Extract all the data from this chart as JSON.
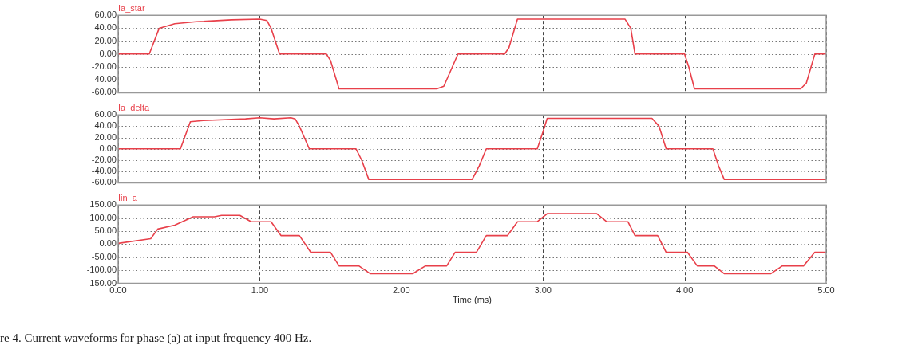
{
  "chart_data": [
    {
      "type": "line",
      "title": "Ia_star",
      "color": "#e8404a",
      "tick_labels": "y",
      "grid": true,
      "x": [
        0,
        0.22,
        0.29,
        0.4,
        0.55,
        0.8,
        1.0,
        1.05,
        1.08,
        1.14,
        1.47,
        1.5,
        1.56,
        2.25,
        2.3,
        2.36,
        2.4,
        2.73,
        2.76,
        2.82,
        3.58,
        3.62,
        3.65,
        4.0,
        4.03,
        4.07,
        4.82,
        4.86,
        4.92,
        5.0
      ],
      "values": [
        0,
        0,
        40,
        47,
        50,
        53,
        54,
        52,
        40,
        0,
        0,
        -10,
        -54,
        -54,
        -50,
        -20,
        0,
        0,
        10,
        54,
        54,
        40,
        0,
        0,
        -20,
        -54,
        -54,
        -45,
        0,
        0
      ],
      "xlim": [
        0,
        5
      ],
      "xticks": [
        0,
        1,
        2,
        3,
        4,
        5
      ],
      "ylim": [
        -60,
        60
      ],
      "yticks": [
        {
          "value": -60,
          "label": "-60.00"
        },
        {
          "value": -40,
          "label": "-40.00"
        },
        {
          "value": -20,
          "label": "-20.00"
        },
        {
          "value": 0,
          "label": "0.00"
        },
        {
          "value": 20,
          "label": "20.00"
        },
        {
          "value": 40,
          "label": "40.00"
        },
        {
          "value": 60,
          "label": "60.00"
        }
      ]
    },
    {
      "type": "line",
      "title": "Ia_delta",
      "color": "#e8404a",
      "tick_labels": "y",
      "grid": true,
      "x": [
        0,
        0.44,
        0.51,
        0.6,
        0.9,
        1.0,
        1.1,
        1.22,
        1.25,
        1.28,
        1.35,
        1.68,
        1.72,
        1.77,
        2.5,
        2.55,
        2.6,
        2.96,
        3.0,
        3.03,
        3.77,
        3.82,
        3.87,
        4.2,
        4.24,
        4.28,
        5.0
      ],
      "values": [
        0,
        0,
        48,
        50,
        53,
        55,
        53,
        55,
        53,
        40,
        0,
        0,
        -20,
        -54,
        -54,
        -30,
        0,
        0,
        30,
        54,
        54,
        40,
        0,
        0,
        -30,
        -54,
        -54
      ],
      "xlim": [
        0,
        5
      ],
      "xticks": [
        0,
        1,
        2,
        3,
        4,
        5
      ],
      "ylim": [
        -60,
        60
      ],
      "yticks": [
        {
          "value": -60,
          "label": "-60.00"
        },
        {
          "value": -40,
          "label": "-40.00"
        },
        {
          "value": -20,
          "label": "-20.00"
        },
        {
          "value": 0,
          "label": "0.00"
        },
        {
          "value": 20,
          "label": "20.00"
        },
        {
          "value": 40,
          "label": "40.00"
        },
        {
          "value": 60,
          "label": "60.00"
        }
      ]
    },
    {
      "type": "line",
      "title": "Iin_a",
      "xlabel": "Time (ms)",
      "color": "#e8404a",
      "grid": true,
      "annotations": [
        "re 4.  Current waveforms for phase (a) at input frequency 400 Hz."
      ],
      "x": [
        0,
        0.23,
        0.28,
        0.4,
        0.53,
        0.68,
        0.73,
        0.86,
        0.94,
        1.08,
        1.15,
        1.28,
        1.36,
        1.5,
        1.56,
        1.7,
        1.78,
        2.08,
        2.17,
        2.32,
        2.38,
        2.53,
        2.6,
        2.75,
        2.82,
        2.96,
        3.03,
        3.38,
        3.45,
        3.6,
        3.65,
        3.81,
        3.87,
        4.02,
        4.09,
        4.21,
        4.28,
        4.61,
        4.69,
        4.84,
        4.92,
        5.0
      ],
      "values": [
        3,
        21,
        58,
        73,
        105,
        105,
        110,
        110,
        86,
        86,
        33,
        33,
        -31,
        -31,
        -83,
        -83,
        -113,
        -113,
        -83,
        -83,
        -31,
        -31,
        33,
        33,
        86,
        86,
        117,
        117,
        86,
        86,
        33,
        33,
        -31,
        -31,
        -83,
        -83,
        -113,
        -113,
        -83,
        -83,
        -31,
        -31
      ],
      "xlim": [
        0,
        5
      ],
      "xticks": [
        {
          "value": 0,
          "label": "0.00"
        },
        {
          "value": 1,
          "label": "1.00"
        },
        {
          "value": 2,
          "label": "2.00"
        },
        {
          "value": 3,
          "label": "3.00"
        },
        {
          "value": 4,
          "label": "4.00"
        },
        {
          "value": 5,
          "label": "5.00"
        }
      ],
      "ylim": [
        -150,
        150
      ],
      "yticks": [
        {
          "value": -150,
          "label": "-150.00"
        },
        {
          "value": -100,
          "label": "-100.00"
        },
        {
          "value": -50,
          "label": "-50.00"
        },
        {
          "value": 0,
          "label": "0.00"
        },
        {
          "value": 50,
          "label": "50.00"
        },
        {
          "value": 100,
          "label": "100.00"
        },
        {
          "value": 150,
          "label": "150.00"
        }
      ]
    }
  ]
}
